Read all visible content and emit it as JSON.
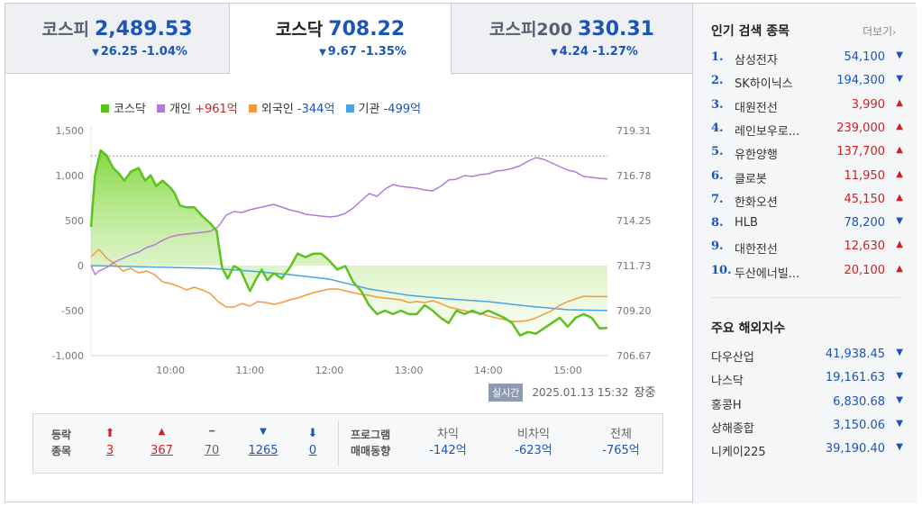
{
  "tabs": [
    {
      "name": "코스피",
      "value": "2,489.53",
      "change": "26.25 -1.04%",
      "arrow": "▼",
      "active": false
    },
    {
      "name": "코스닥",
      "value": "708.22",
      "change": "9.67 -1.35%",
      "arrow": "▼",
      "active": true
    },
    {
      "name": "코스피200",
      "value": "330.31",
      "change": "4.24 -1.27%",
      "arrow": "▼",
      "active": false
    }
  ],
  "legend": {
    "kosdaq": "코스닥",
    "individual": {
      "label": "개인",
      "value": "+961억"
    },
    "foreign": {
      "label": "외국인",
      "value": "-344억"
    },
    "institution": {
      "label": "기관",
      "value": "-499억"
    }
  },
  "colors": {
    "kosdaq": "#5cc31e",
    "individual": "#b07bd6",
    "foreign": "#f39a3a",
    "institution": "#4aa3e6",
    "rise": "#d11f1f",
    "fall": "#1b55b8"
  },
  "chart_data": {
    "type": "line",
    "x_ticks": [
      "10:00",
      "11:00",
      "12:00",
      "13:00",
      "14:00",
      "15:00"
    ],
    "y_left_ticks": [
      "1,500",
      "1,000",
      "500",
      "0",
      "-500",
      "-1,000"
    ],
    "y_right_ticks": [
      "719.31",
      "716.78",
      "714.25",
      "711.73",
      "709.20",
      "706.67"
    ],
    "y_left_range": [
      -1000,
      1500
    ],
    "y_right_range": [
      706.67,
      719.31
    ],
    "x_range": [
      9.0,
      15.5
    ],
    "series": [
      {
        "name": "코스닥",
        "axis": "right",
        "fill": true,
        "points": [
          [
            9.0,
            713.9
          ],
          [
            9.05,
            716.8
          ],
          [
            9.12,
            718.2
          ],
          [
            9.2,
            717.9
          ],
          [
            9.28,
            717.2
          ],
          [
            9.35,
            716.9
          ],
          [
            9.42,
            716.5
          ],
          [
            9.5,
            717.0
          ],
          [
            9.6,
            717.2
          ],
          [
            9.68,
            716.5
          ],
          [
            9.75,
            716.8
          ],
          [
            9.82,
            716.2
          ],
          [
            9.9,
            716.5
          ],
          [
            10.0,
            716.1
          ],
          [
            10.05,
            715.8
          ],
          [
            10.12,
            715.1
          ],
          [
            10.2,
            715.0
          ],
          [
            10.3,
            715.0
          ],
          [
            10.4,
            714.5
          ],
          [
            10.5,
            714.1
          ],
          [
            10.58,
            713.7
          ],
          [
            10.65,
            711.6
          ],
          [
            10.72,
            711.0
          ],
          [
            10.8,
            711.7
          ],
          [
            10.88,
            711.5
          ],
          [
            11.0,
            710.3
          ],
          [
            11.08,
            711.0
          ],
          [
            11.15,
            711.5
          ],
          [
            11.22,
            710.9
          ],
          [
            11.3,
            711.3
          ],
          [
            11.4,
            711.0
          ],
          [
            11.5,
            711.6
          ],
          [
            11.6,
            712.4
          ],
          [
            11.7,
            712.2
          ],
          [
            11.8,
            712.4
          ],
          [
            11.9,
            712.4
          ],
          [
            12.0,
            712.0
          ],
          [
            12.1,
            711.5
          ],
          [
            12.2,
            711.7
          ],
          [
            12.3,
            710.8
          ],
          [
            12.4,
            710.3
          ],
          [
            12.5,
            709.5
          ],
          [
            12.6,
            709.0
          ],
          [
            12.7,
            709.2
          ],
          [
            12.8,
            709.0
          ],
          [
            12.9,
            709.2
          ],
          [
            13.0,
            709.0
          ],
          [
            13.1,
            709.0
          ],
          [
            13.2,
            709.5
          ],
          [
            13.3,
            709.2
          ],
          [
            13.4,
            708.8
          ],
          [
            13.5,
            708.5
          ],
          [
            13.6,
            709.2
          ],
          [
            13.7,
            709.0
          ],
          [
            13.8,
            709.2
          ],
          [
            13.9,
            709.0
          ],
          [
            14.0,
            709.2
          ],
          [
            14.1,
            709.0
          ],
          [
            14.2,
            708.8
          ],
          [
            14.3,
            708.5
          ],
          [
            14.4,
            707.8
          ],
          [
            14.5,
            708.0
          ],
          [
            14.6,
            707.9
          ],
          [
            14.7,
            708.2
          ],
          [
            14.8,
            708.5
          ],
          [
            14.9,
            708.8
          ],
          [
            15.0,
            708.3
          ],
          [
            15.1,
            708.8
          ],
          [
            15.2,
            709.0
          ],
          [
            15.3,
            708.8
          ],
          [
            15.4,
            708.2
          ],
          [
            15.5,
            708.22
          ]
        ]
      },
      {
        "name": "개인",
        "axis": "left",
        "points": [
          [
            9.0,
            0
          ],
          [
            9.05,
            -100
          ],
          [
            9.1,
            -60
          ],
          [
            9.2,
            -20
          ],
          [
            9.3,
            40
          ],
          [
            9.4,
            80
          ],
          [
            9.5,
            120
          ],
          [
            9.6,
            150
          ],
          [
            9.7,
            200
          ],
          [
            9.8,
            230
          ],
          [
            9.9,
            280
          ],
          [
            10.0,
            320
          ],
          [
            10.1,
            340
          ],
          [
            10.2,
            350
          ],
          [
            10.3,
            360
          ],
          [
            10.4,
            370
          ],
          [
            10.5,
            380
          ],
          [
            10.6,
            430
          ],
          [
            10.7,
            560
          ],
          [
            10.8,
            600
          ],
          [
            10.9,
            590
          ],
          [
            11.0,
            620
          ],
          [
            11.1,
            640
          ],
          [
            11.2,
            660
          ],
          [
            11.3,
            680
          ],
          [
            11.4,
            650
          ],
          [
            11.5,
            620
          ],
          [
            11.6,
            600
          ],
          [
            11.7,
            570
          ],
          [
            11.8,
            560
          ],
          [
            11.9,
            550
          ],
          [
            12.0,
            540
          ],
          [
            12.1,
            550
          ],
          [
            12.2,
            580
          ],
          [
            12.3,
            640
          ],
          [
            12.4,
            720
          ],
          [
            12.5,
            800
          ],
          [
            12.6,
            770
          ],
          [
            12.7,
            850
          ],
          [
            12.8,
            900
          ],
          [
            12.9,
            880
          ],
          [
            13.0,
            870
          ],
          [
            13.1,
            860
          ],
          [
            13.2,
            840
          ],
          [
            13.3,
            830
          ],
          [
            13.4,
            880
          ],
          [
            13.5,
            950
          ],
          [
            13.6,
            960
          ],
          [
            13.7,
            1000
          ],
          [
            13.8,
            990
          ],
          [
            13.9,
            1010
          ],
          [
            14.0,
            1020
          ],
          [
            14.1,
            1050
          ],
          [
            14.2,
            1060
          ],
          [
            14.3,
            1080
          ],
          [
            14.4,
            1110
          ],
          [
            14.5,
            1160
          ],
          [
            14.6,
            1200
          ],
          [
            14.7,
            1180
          ],
          [
            14.8,
            1140
          ],
          [
            14.9,
            1100
          ],
          [
            15.0,
            1060
          ],
          [
            15.1,
            1040
          ],
          [
            15.2,
            990
          ],
          [
            15.3,
            980
          ],
          [
            15.4,
            970
          ],
          [
            15.5,
            961
          ]
        ]
      },
      {
        "name": "외국인",
        "axis": "left",
        "points": [
          [
            9.0,
            100
          ],
          [
            9.1,
            180
          ],
          [
            9.15,
            130
          ],
          [
            9.2,
            80
          ],
          [
            9.3,
            20
          ],
          [
            9.4,
            -60
          ],
          [
            9.5,
            -30
          ],
          [
            9.6,
            -80
          ],
          [
            9.7,
            -60
          ],
          [
            9.8,
            -100
          ],
          [
            9.9,
            -180
          ],
          [
            10.0,
            -200
          ],
          [
            10.1,
            -230
          ],
          [
            10.2,
            -270
          ],
          [
            10.3,
            -240
          ],
          [
            10.4,
            -270
          ],
          [
            10.5,
            -310
          ],
          [
            10.6,
            -400
          ],
          [
            10.7,
            -460
          ],
          [
            10.8,
            -460
          ],
          [
            10.9,
            -420
          ],
          [
            11.0,
            -450
          ],
          [
            11.1,
            -400
          ],
          [
            11.2,
            -410
          ],
          [
            11.3,
            -430
          ],
          [
            11.4,
            -410
          ],
          [
            11.5,
            -380
          ],
          [
            11.6,
            -360
          ],
          [
            11.7,
            -330
          ],
          [
            11.8,
            -300
          ],
          [
            11.9,
            -280
          ],
          [
            12.0,
            -260
          ],
          [
            12.1,
            -260
          ],
          [
            12.2,
            -280
          ],
          [
            12.3,
            -300
          ],
          [
            12.4,
            -320
          ],
          [
            12.5,
            -330
          ],
          [
            12.6,
            -350
          ],
          [
            12.7,
            -360
          ],
          [
            12.8,
            -370
          ],
          [
            12.9,
            -380
          ],
          [
            13.0,
            -410
          ],
          [
            13.1,
            -400
          ],
          [
            13.2,
            -410
          ],
          [
            13.3,
            -390
          ],
          [
            13.4,
            -420
          ],
          [
            13.5,
            -460
          ],
          [
            13.6,
            -480
          ],
          [
            13.7,
            -500
          ],
          [
            13.8,
            -520
          ],
          [
            13.9,
            -530
          ],
          [
            14.0,
            -560
          ],
          [
            14.1,
            -580
          ],
          [
            14.2,
            -600
          ],
          [
            14.3,
            -620
          ],
          [
            14.4,
            -620
          ],
          [
            14.5,
            -610
          ],
          [
            14.6,
            -580
          ],
          [
            14.7,
            -540
          ],
          [
            14.8,
            -500
          ],
          [
            14.9,
            -440
          ],
          [
            15.0,
            -400
          ],
          [
            15.1,
            -370
          ],
          [
            15.2,
            -340
          ],
          [
            15.3,
            -344
          ],
          [
            15.4,
            -344
          ],
          [
            15.5,
            -344
          ]
        ]
      },
      {
        "name": "기관",
        "axis": "left",
        "points": [
          [
            9.0,
            0
          ],
          [
            9.5,
            -10
          ],
          [
            10.0,
            -20
          ],
          [
            10.5,
            -30
          ],
          [
            11.0,
            -60
          ],
          [
            11.5,
            -100
          ],
          [
            12.0,
            -150
          ],
          [
            12.5,
            -260
          ],
          [
            13.0,
            -330
          ],
          [
            13.5,
            -370
          ],
          [
            14.0,
            -400
          ],
          [
            14.5,
            -450
          ],
          [
            15.0,
            -490
          ],
          [
            15.5,
            -499
          ]
        ]
      }
    ]
  },
  "timestamp": {
    "badge": "실시간",
    "datetime": "2025.01.13 15:32",
    "status": "장중"
  },
  "updown": {
    "label_line1": "등락",
    "label_line2": "종목",
    "items": [
      {
        "icon": "⬆",
        "count": "3",
        "tone": "red",
        "name": "upper-limit"
      },
      {
        "icon": "▲",
        "count": "367",
        "tone": "red",
        "name": "rise"
      },
      {
        "icon": "━",
        "count": "70",
        "tone": "gray",
        "name": "flat"
      },
      {
        "icon": "▼",
        "count": "1265",
        "tone": "blue",
        "name": "fall"
      },
      {
        "icon": "⬇",
        "count": "0",
        "tone": "blue",
        "name": "lower-limit"
      }
    ]
  },
  "program": {
    "label_line1": "프로그램",
    "label_line2": "매매동향",
    "items": [
      {
        "head": "차익",
        "value": "-142억"
      },
      {
        "head": "비차익",
        "value": "-623억"
      },
      {
        "head": "전체",
        "value": "-765억"
      }
    ]
  },
  "popular": {
    "title": "인기 검색 종목",
    "more": "더보기",
    "items": [
      {
        "rank": "1.",
        "name": "삼성전자",
        "price": "54,100",
        "dir": "down"
      },
      {
        "rank": "2.",
        "name": "SK하이닉스",
        "price": "194,300",
        "dir": "down"
      },
      {
        "rank": "3.",
        "name": "대원전선",
        "price": "3,990",
        "dir": "up"
      },
      {
        "rank": "4.",
        "name": "레인보우로...",
        "price": "239,000",
        "dir": "up"
      },
      {
        "rank": "5.",
        "name": "유한양행",
        "price": "137,700",
        "dir": "up"
      },
      {
        "rank": "6.",
        "name": "클로봇",
        "price": "11,950",
        "dir": "up"
      },
      {
        "rank": "7.",
        "name": "한화오션",
        "price": "45,150",
        "dir": "up"
      },
      {
        "rank": "8.",
        "name": "HLB",
        "price": "78,200",
        "dir": "down"
      },
      {
        "rank": "9.",
        "name": "대한전선",
        "price": "12,630",
        "dir": "up"
      },
      {
        "rank": "10.",
        "name": "두산에너빌...",
        "price": "20,100",
        "dir": "up"
      }
    ]
  },
  "overseas": {
    "title": "주요 해외지수",
    "items": [
      {
        "name": "다우산업",
        "value": "41,938.45"
      },
      {
        "name": "나스닥",
        "value": "19,161.63"
      },
      {
        "name": "홍콩H",
        "value": "6,830.68"
      },
      {
        "name": "상해종합",
        "value": "3,150.06"
      },
      {
        "name": "니케이225",
        "value": "39,190.40"
      }
    ]
  }
}
